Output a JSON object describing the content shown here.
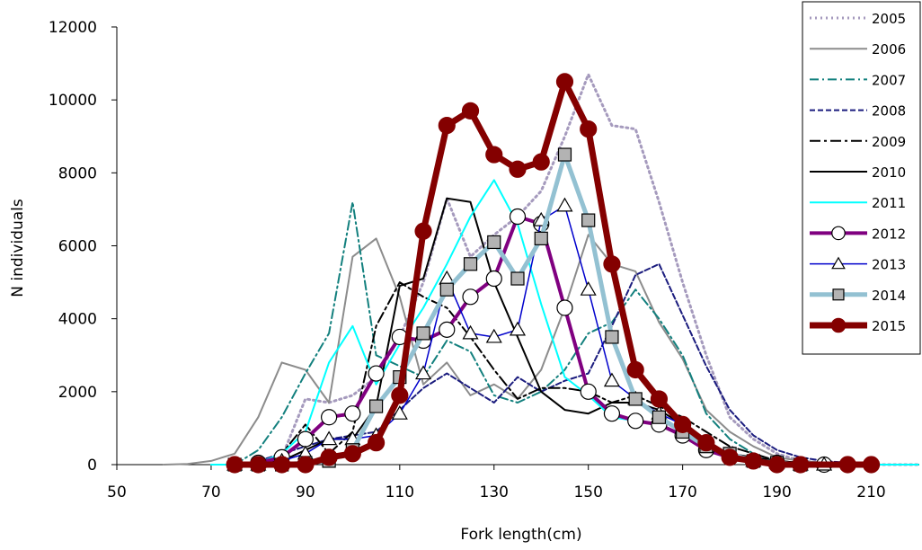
{
  "chart_data": {
    "type": "line",
    "xlabel": "Fork length(cm)",
    "ylabel": "N individuals",
    "xlim": [
      50,
      220
    ],
    "ylim": [
      0,
      12000
    ],
    "x_ticks": [
      50,
      70,
      90,
      110,
      130,
      150,
      170,
      190,
      210
    ],
    "y_ticks": [
      0,
      2000,
      4000,
      6000,
      8000,
      10000,
      12000
    ],
    "grid": false,
    "legend_position": "top-right",
    "series": [
      {
        "name": "2005",
        "color": "#a59abd",
        "width": 3,
        "dash": "2,4",
        "marker": "none",
        "x": [
          75,
          80,
          85,
          90,
          95,
          100,
          105,
          110,
          115,
          120,
          125,
          130,
          135,
          140,
          145,
          150,
          155,
          160,
          165,
          170,
          175,
          180,
          185,
          190,
          195,
          200,
          205,
          210,
          215,
          220
        ],
        "y": [
          0,
          50,
          200,
          1800,
          1700,
          1900,
          2400,
          3500,
          5000,
          7300,
          5700,
          6300,
          6800,
          7500,
          9000,
          10700,
          9300,
          9200,
          7200,
          5000,
          3000,
          1300,
          700,
          300,
          100,
          50,
          20,
          0,
          0,
          0
        ]
      },
      {
        "name": "2006",
        "color": "#8c8c8c",
        "width": 2,
        "dash": "",
        "marker": "none",
        "x": [
          60,
          65,
          70,
          75,
          80,
          85,
          90,
          95,
          100,
          105,
          110,
          115,
          120,
          125,
          130,
          135,
          140,
          145,
          150,
          155,
          160,
          165,
          170,
          175,
          180,
          185,
          190,
          195,
          200,
          205,
          210,
          215,
          220
        ],
        "y": [
          0,
          20,
          100,
          300,
          1300,
          2800,
          2600,
          1700,
          5700,
          6200,
          4600,
          2200,
          2800,
          1900,
          2200,
          1800,
          2600,
          4300,
          6300,
          5500,
          5300,
          3900,
          2900,
          1500,
          900,
          500,
          200,
          100,
          50,
          20,
          0,
          0,
          0
        ]
      },
      {
        "name": "2007",
        "color": "#13807e",
        "width": 2,
        "dash": "10,4,2,4",
        "marker": "none",
        "x": [
          75,
          80,
          85,
          90,
          95,
          100,
          105,
          110,
          115,
          120,
          125,
          130,
          135,
          140,
          145,
          150,
          155,
          160,
          165,
          170,
          175,
          180,
          185,
          190,
          195,
          200,
          205,
          210,
          215,
          220
        ],
        "y": [
          0,
          400,
          1300,
          2500,
          3600,
          7200,
          3000,
          2700,
          2400,
          3400,
          3100,
          1900,
          1700,
          2000,
          2600,
          3600,
          3900,
          4800,
          4000,
          3000,
          1400,
          700,
          300,
          100,
          50,
          20,
          0,
          0,
          0,
          0
        ]
      },
      {
        "name": "2008",
        "color": "#1b1c7e",
        "width": 2,
        "dash": "6,3",
        "marker": "none",
        "x": [
          75,
          80,
          85,
          90,
          95,
          100,
          105,
          110,
          115,
          120,
          125,
          130,
          135,
          140,
          145,
          150,
          155,
          160,
          165,
          170,
          175,
          180,
          185,
          190,
          195,
          200,
          205,
          210,
          215,
          220
        ],
        "y": [
          0,
          100,
          300,
          500,
          700,
          800,
          900,
          1500,
          2100,
          2500,
          2100,
          1700,
          2400,
          2000,
          2300,
          2500,
          3800,
          5200,
          5500,
          4100,
          2700,
          1500,
          800,
          400,
          200,
          100,
          50,
          0,
          0,
          0
        ]
      },
      {
        "name": "2009",
        "color": "#000000",
        "width": 2,
        "dash": "12,4,3,4",
        "marker": "none",
        "x": [
          75,
          80,
          85,
          90,
          95,
          100,
          105,
          110,
          115,
          120,
          125,
          130,
          135,
          140,
          145,
          150,
          155,
          160,
          165,
          170,
          175,
          180,
          185,
          190,
          195,
          200,
          205,
          210,
          215,
          220
        ],
        "y": [
          0,
          50,
          300,
          1100,
          300,
          900,
          3800,
          5000,
          4600,
          4300,
          3500,
          2600,
          1800,
          2100,
          2100,
          2000,
          1700,
          1900,
          1600,
          1300,
          900,
          500,
          300,
          100,
          50,
          0,
          0,
          0,
          0,
          0
        ]
      },
      {
        "name": "2010",
        "color": "#000000",
        "width": 2,
        "dash": "",
        "marker": "none",
        "x": [
          75,
          80,
          85,
          90,
          95,
          100,
          105,
          110,
          115,
          120,
          125,
          130,
          135,
          140,
          145,
          150,
          155,
          160,
          165,
          170,
          175,
          180,
          185,
          190,
          195,
          200,
          205,
          210,
          215,
          220
        ],
        "y": [
          0,
          50,
          100,
          400,
          700,
          700,
          1600,
          4900,
          5100,
          7300,
          7200,
          5000,
          3500,
          2000,
          1500,
          1400,
          1700,
          1700,
          1500,
          1100,
          600,
          300,
          200,
          100,
          50,
          0,
          0,
          0,
          0,
          0
        ]
      },
      {
        "name": "2011",
        "color": "#00ffff",
        "width": 2,
        "dash": "",
        "marker": "none",
        "x": [
          70,
          75,
          80,
          85,
          90,
          95,
          100,
          105,
          110,
          115,
          120,
          125,
          130,
          135,
          140,
          145,
          150,
          155,
          160,
          165,
          170,
          175,
          180,
          185,
          190,
          195,
          200,
          205,
          210,
          215,
          220
        ],
        "y": [
          0,
          0,
          50,
          300,
          900,
          2800,
          3800,
          2200,
          3300,
          4300,
          5500,
          6800,
          7800,
          6600,
          4400,
          2400,
          1900,
          1300,
          1200,
          1100,
          800,
          400,
          200,
          100,
          50,
          0,
          0,
          0,
          0,
          0,
          0
        ]
      },
      {
        "name": "2012",
        "color": "#800080",
        "width": 4,
        "dash": "",
        "marker": "circle",
        "marker_fill": "#ffffff",
        "marker_size": 8.5,
        "x": [
          75,
          80,
          85,
          90,
          95,
          100,
          105,
          110,
          115,
          120,
          125,
          130,
          135,
          140,
          145,
          150,
          155,
          160,
          165,
          170,
          175,
          180,
          185,
          190,
          195,
          200,
          205,
          210
        ],
        "y": [
          0,
          50,
          200,
          700,
          1300,
          1400,
          2500,
          3500,
          3400,
          3700,
          4600,
          5100,
          6800,
          6600,
          4300,
          2000,
          1400,
          1200,
          1100,
          800,
          400,
          200,
          100,
          50,
          0,
          0,
          0,
          0
        ]
      },
      {
        "name": "2013",
        "color": "#0000cc",
        "width": 1.5,
        "dash": "",
        "marker": "triangle",
        "marker_fill": "#ffffff",
        "marker_size": 8,
        "x": [
          75,
          80,
          85,
          90,
          95,
          100,
          105,
          110,
          115,
          120,
          125,
          130,
          135,
          140,
          145,
          150,
          155,
          160,
          165,
          170,
          175,
          180,
          185,
          190,
          195,
          200
        ],
        "y": [
          0,
          0,
          100,
          300,
          700,
          700,
          800,
          1400,
          2500,
          5100,
          3600,
          3500,
          3700,
          6700,
          7100,
          4800,
          2300,
          1800,
          1400,
          1100,
          600,
          300,
          100,
          50,
          0,
          0
        ]
      },
      {
        "name": "2014",
        "color": "#93c1d2",
        "width": 5,
        "dash": "",
        "marker": "square",
        "marker_fill": "#b3b3b3",
        "marker_size": 7,
        "x": [
          75,
          80,
          85,
          90,
          95,
          100,
          105,
          110,
          115,
          120,
          125,
          130,
          135,
          140,
          145,
          150,
          155,
          160,
          165,
          170,
          175,
          180,
          185,
          190,
          195
        ],
        "y": [
          0,
          0,
          0,
          50,
          100,
          400,
          1600,
          2400,
          3600,
          4800,
          5500,
          6100,
          5100,
          6200,
          8500,
          6700,
          3500,
          1800,
          1300,
          900,
          500,
          300,
          100,
          50,
          0
        ]
      },
      {
        "name": "2015",
        "color": "#840000",
        "width": 7,
        "dash": "",
        "marker": "circle",
        "marker_fill": "#840000",
        "marker_size": 9,
        "x": [
          75,
          80,
          85,
          90,
          95,
          100,
          105,
          110,
          115,
          120,
          125,
          130,
          135,
          140,
          145,
          150,
          155,
          160,
          165,
          170,
          175,
          180,
          185,
          190,
          195,
          205,
          210
        ],
        "y": [
          0,
          0,
          0,
          0,
          200,
          300,
          600,
          1900,
          6400,
          9300,
          9700,
          8500,
          8100,
          8300,
          10500,
          9200,
          5500,
          2600,
          1800,
          1100,
          600,
          200,
          100,
          0,
          0,
          0,
          0
        ]
      }
    ]
  }
}
